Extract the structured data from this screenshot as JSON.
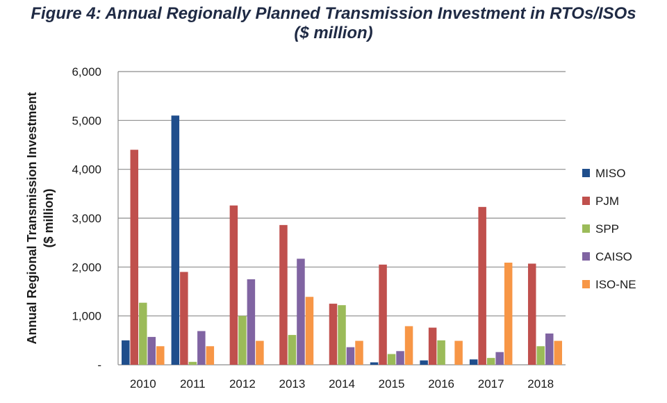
{
  "title_line1": "Figure 4: Annual Regionally Planned Transmission Investment in RTOs/ISOs",
  "title_line2": "($ million)",
  "chart_data": {
    "type": "bar",
    "title": "Figure 4: Annual Regionally Planned Transmission Investment in RTOs/ISOs ($ million)",
    "ylabel_line1": "Annual Regional Transmission Investment",
    "ylabel_line2": "($ million)",
    "categories": [
      "2010",
      "2011",
      "2012",
      "2013",
      "2014",
      "2015",
      "2016",
      "2017",
      "2018"
    ],
    "ylim": [
      0,
      6000
    ],
    "yticks": [
      0,
      1000,
      2000,
      3000,
      4000,
      5000,
      6000
    ],
    "ytick_labels": [
      "-",
      "1,000",
      "2,000",
      "3,000",
      "4,000",
      "5,000",
      "6,000"
    ],
    "grid": true,
    "legend_position": "right",
    "series": [
      {
        "name": "MISO",
        "color": "#1f4e8c",
        "values": [
          500,
          5100,
          0,
          0,
          0,
          50,
          90,
          110,
          0
        ]
      },
      {
        "name": "PJM",
        "color": "#c0504d",
        "values": [
          4400,
          1900,
          3260,
          2860,
          1250,
          2050,
          760,
          3230,
          2070
        ]
      },
      {
        "name": "SPP",
        "color": "#9bbb59",
        "values": [
          1270,
          60,
          1000,
          610,
          1220,
          220,
          500,
          140,
          380
        ]
      },
      {
        "name": "CAISO",
        "color": "#8064a2",
        "values": [
          570,
          690,
          1750,
          2170,
          360,
          280,
          0,
          260,
          640
        ]
      },
      {
        "name": "ISO-NE",
        "color": "#f79646",
        "values": [
          380,
          380,
          490,
          1390,
          490,
          790,
          490,
          2090,
          490
        ]
      }
    ]
  }
}
